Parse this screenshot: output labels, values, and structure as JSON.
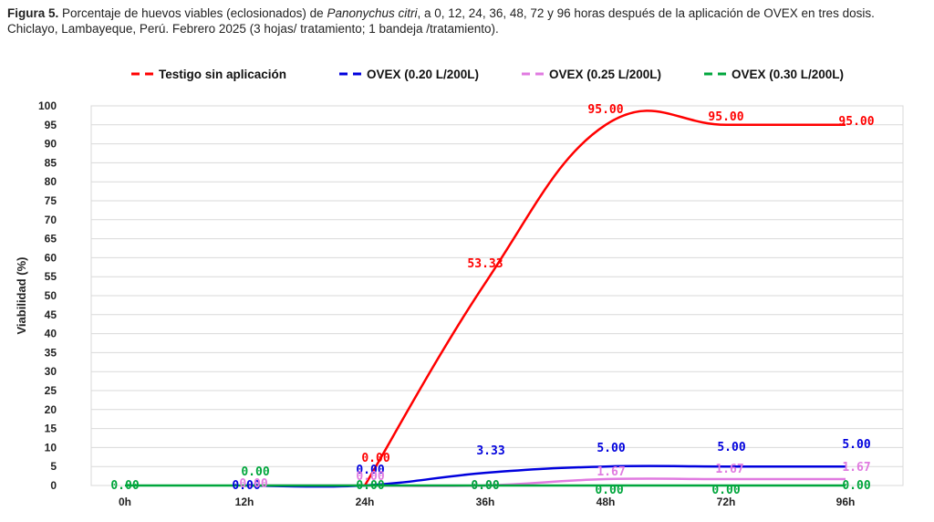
{
  "caption": {
    "label": "Figura 5.",
    "text_before_species": " Porcentaje de huevos viables (eclosionados) de ",
    "species": "Panonychus citri",
    "text_after_species": ", a 0, 12, 24, 36, 48, 72 y 96 horas después de la aplicación de OVEX en tres dosis. Chiclayo, Lambayeque, Perú. Febrero 2025 (3 hojas/ tratamiento; 1 bandeja /tratamiento)."
  },
  "chart_data": {
    "type": "line",
    "categories": [
      "0h",
      "12h",
      "24h",
      "36h",
      "48h",
      "72h",
      "96h"
    ],
    "ylabel": "Viabilidad (%)",
    "xlabel": "",
    "ylim": [
      0,
      100
    ],
    "ytick_step": 5,
    "grid": true,
    "legend_position": "top",
    "series": [
      {
        "name": "Testigo sin aplicación",
        "color": "#ff0000",
        "values": [
          null,
          null,
          0.0,
          53.33,
          95.0,
          95.0,
          95.0
        ],
        "labels": [
          "",
          "",
          "0.00",
          "53.33",
          "95.00",
          "95.00",
          "95.00"
        ]
      },
      {
        "name": "OVEX  (0.20 L/200L)",
        "color": "#0000dd",
        "values": [
          null,
          0.0,
          0.0,
          3.33,
          5.0,
          5.0,
          5.0
        ],
        "labels": [
          "",
          "0.00",
          "0.00",
          "3.33",
          "5.00",
          "5.00",
          "5.00"
        ]
      },
      {
        "name": "OVEX  (0.25 L/200L)",
        "color": "#e07ae0",
        "values": [
          null,
          0.0,
          0.0,
          0.0,
          1.67,
          1.67,
          1.67
        ],
        "labels": [
          "",
          "0.00",
          "0.00",
          "0.00",
          "1.67",
          "1.67",
          "1.67"
        ]
      },
      {
        "name": "OVEX  (0.30 L/200L)",
        "color": "#00a63c",
        "values": [
          0.0,
          0.0,
          0.0,
          0.0,
          0.0,
          0.0,
          0.0
        ],
        "labels": [
          "0.00",
          "0.00",
          "0.00",
          "0.00",
          "0.00",
          "0.00",
          "0.00"
        ]
      }
    ]
  }
}
